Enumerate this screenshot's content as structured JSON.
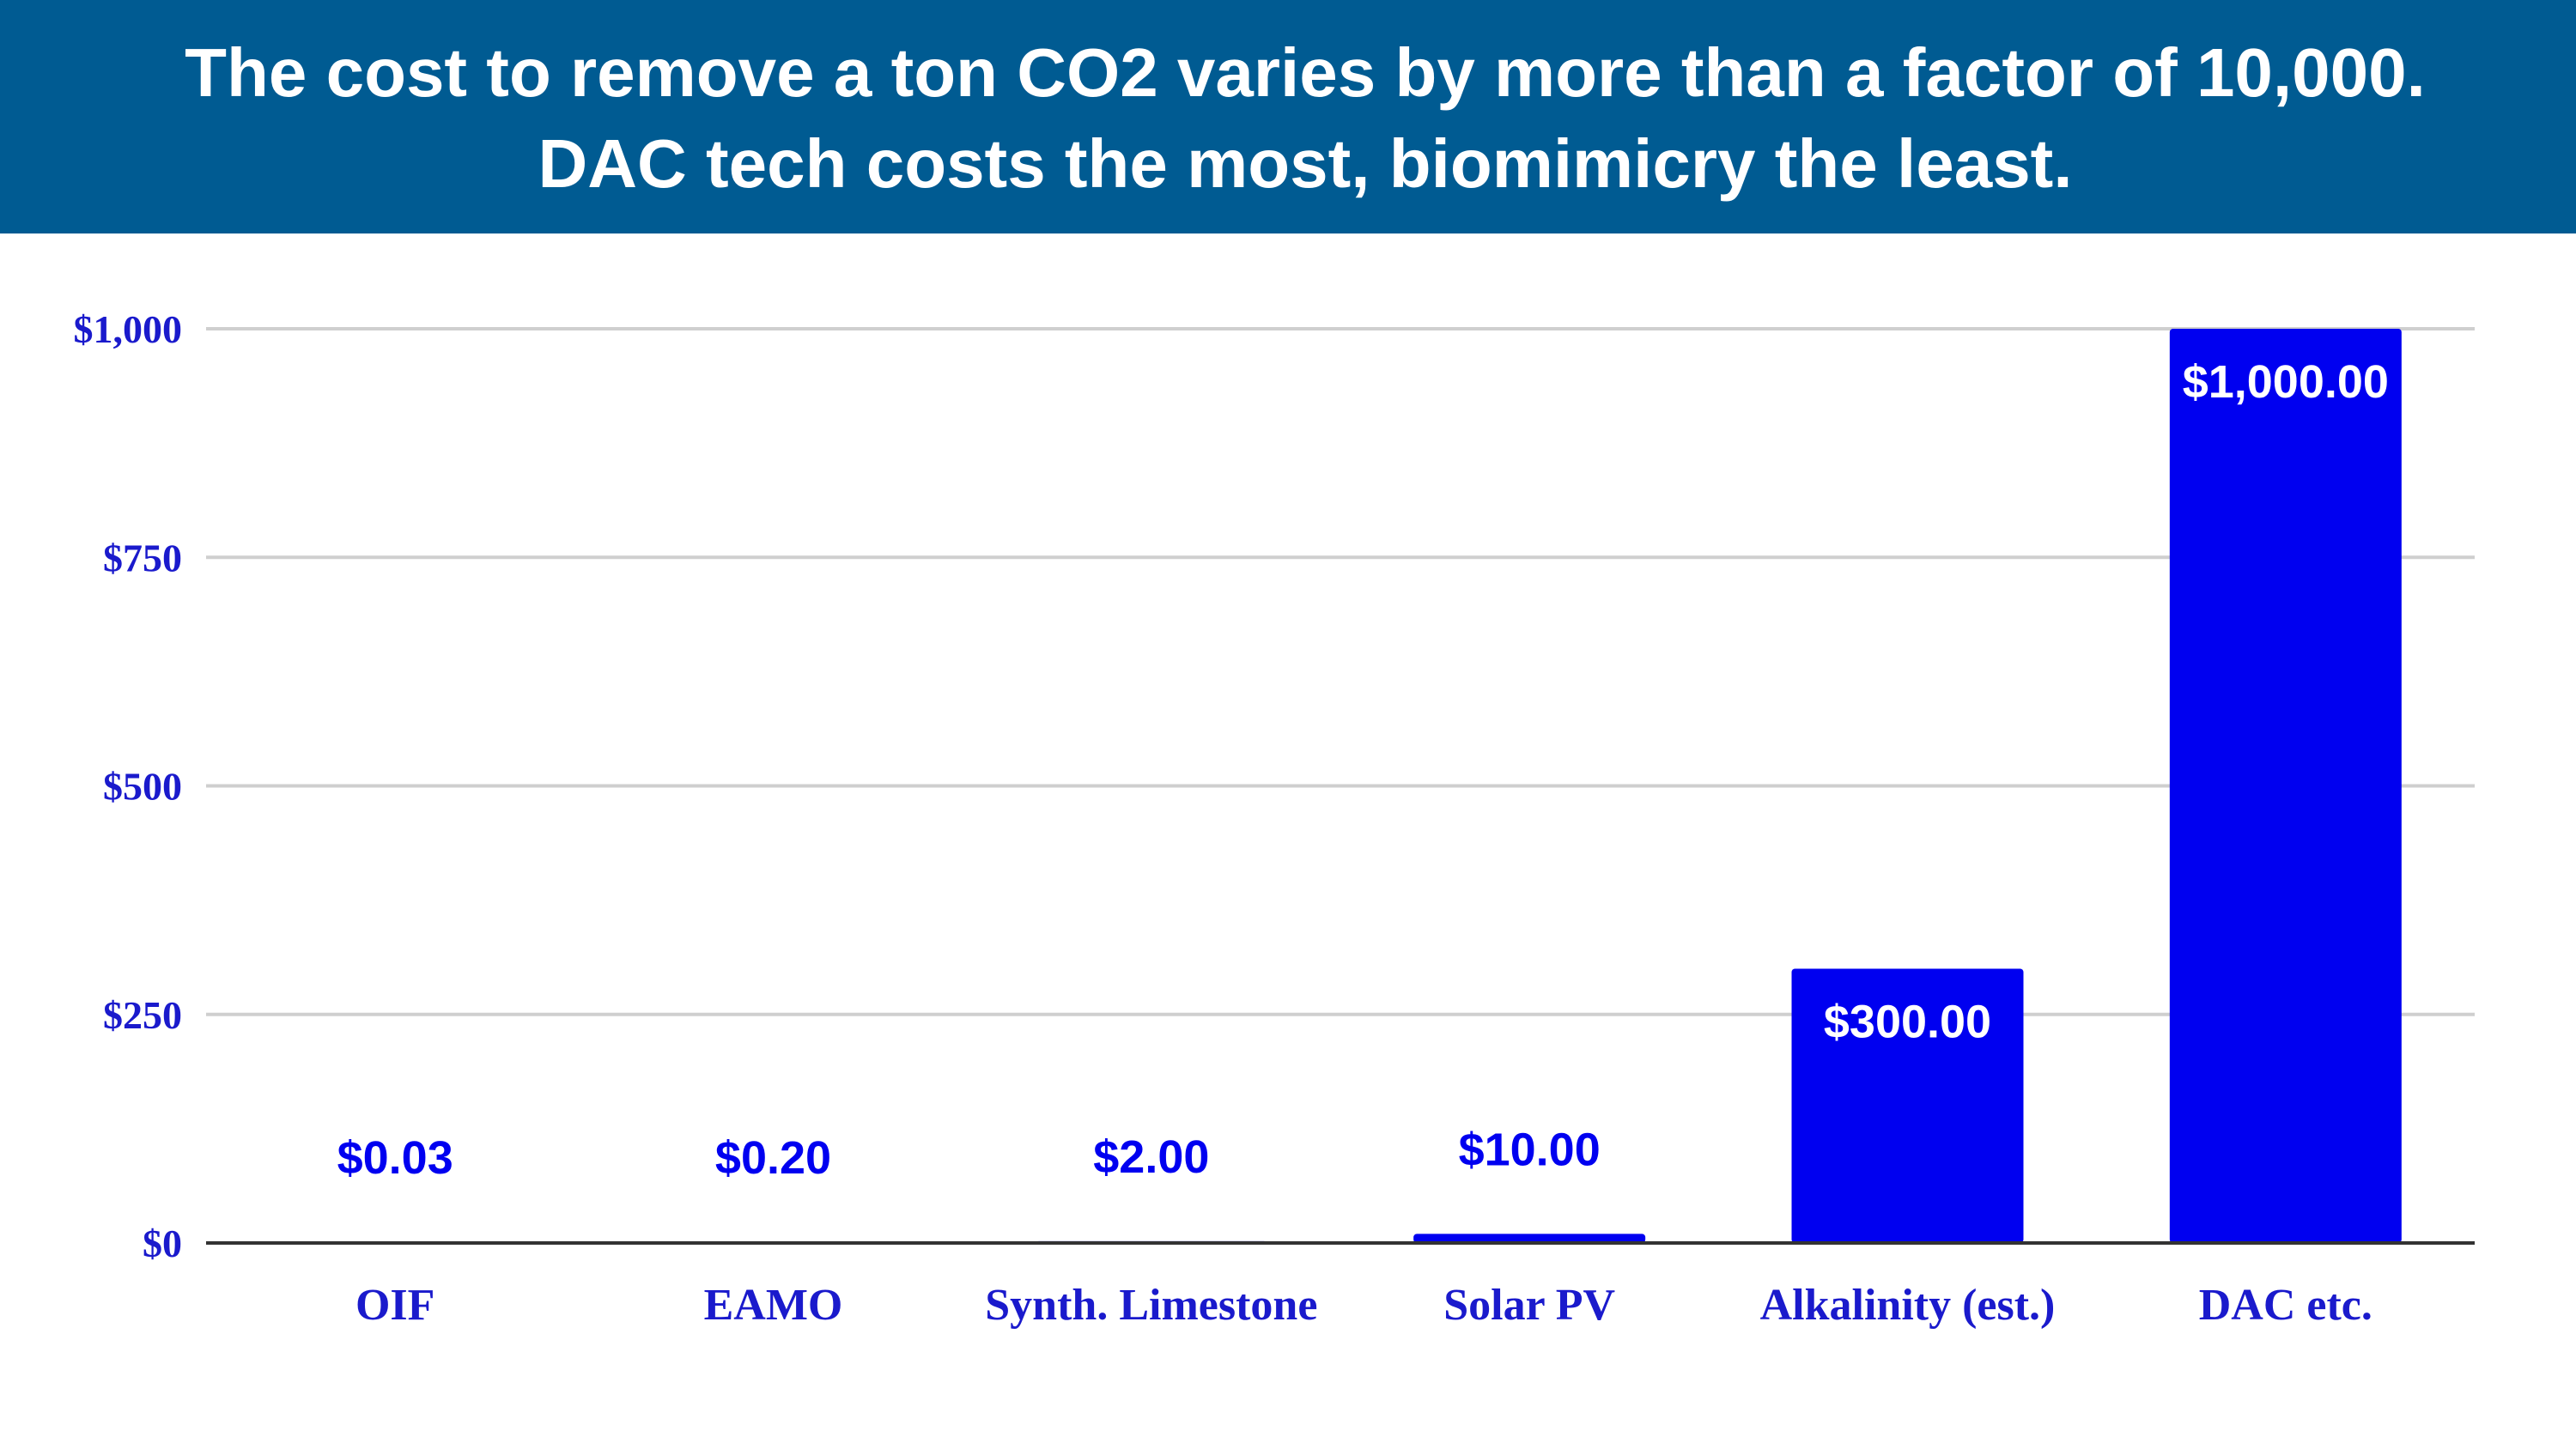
{
  "header": {
    "title_line1": "The cost to remove a ton CO2 varies by more than a factor of 10,000.",
    "title_line2": "DAC tech costs the most, biomimicry the least."
  },
  "colors": {
    "banner": "#005b92",
    "bar": "#0000f0",
    "axis_text": "#1a1acc",
    "grid": "#cfcfcf",
    "baseline": "#333333",
    "label_inside": "#ffffff"
  },
  "chart_data": {
    "type": "bar",
    "title": "The cost to remove a ton CO2 varies by more than a factor of 10,000. DAC tech costs the most, biomimicry the least.",
    "xlabel": "",
    "ylabel": "",
    "ylim": [
      0,
      1000
    ],
    "grid": true,
    "categories": [
      "OIF",
      "EAMO",
      "Synth. Limestone",
      "Solar PV",
      "Alkalinity (est.)",
      "DAC etc."
    ],
    "values": [
      0.03,
      0.2,
      2.0,
      10.0,
      300.0,
      1000.0
    ],
    "data_labels": [
      "$0.03",
      "$0.20",
      "$2.00",
      "$10.00",
      "$300.00",
      "$1,000.00"
    ],
    "yticks": [
      0,
      250,
      500,
      750,
      1000
    ],
    "ytick_labels": [
      "$0",
      "$250",
      "$500",
      "$750",
      "$1,000"
    ]
  }
}
